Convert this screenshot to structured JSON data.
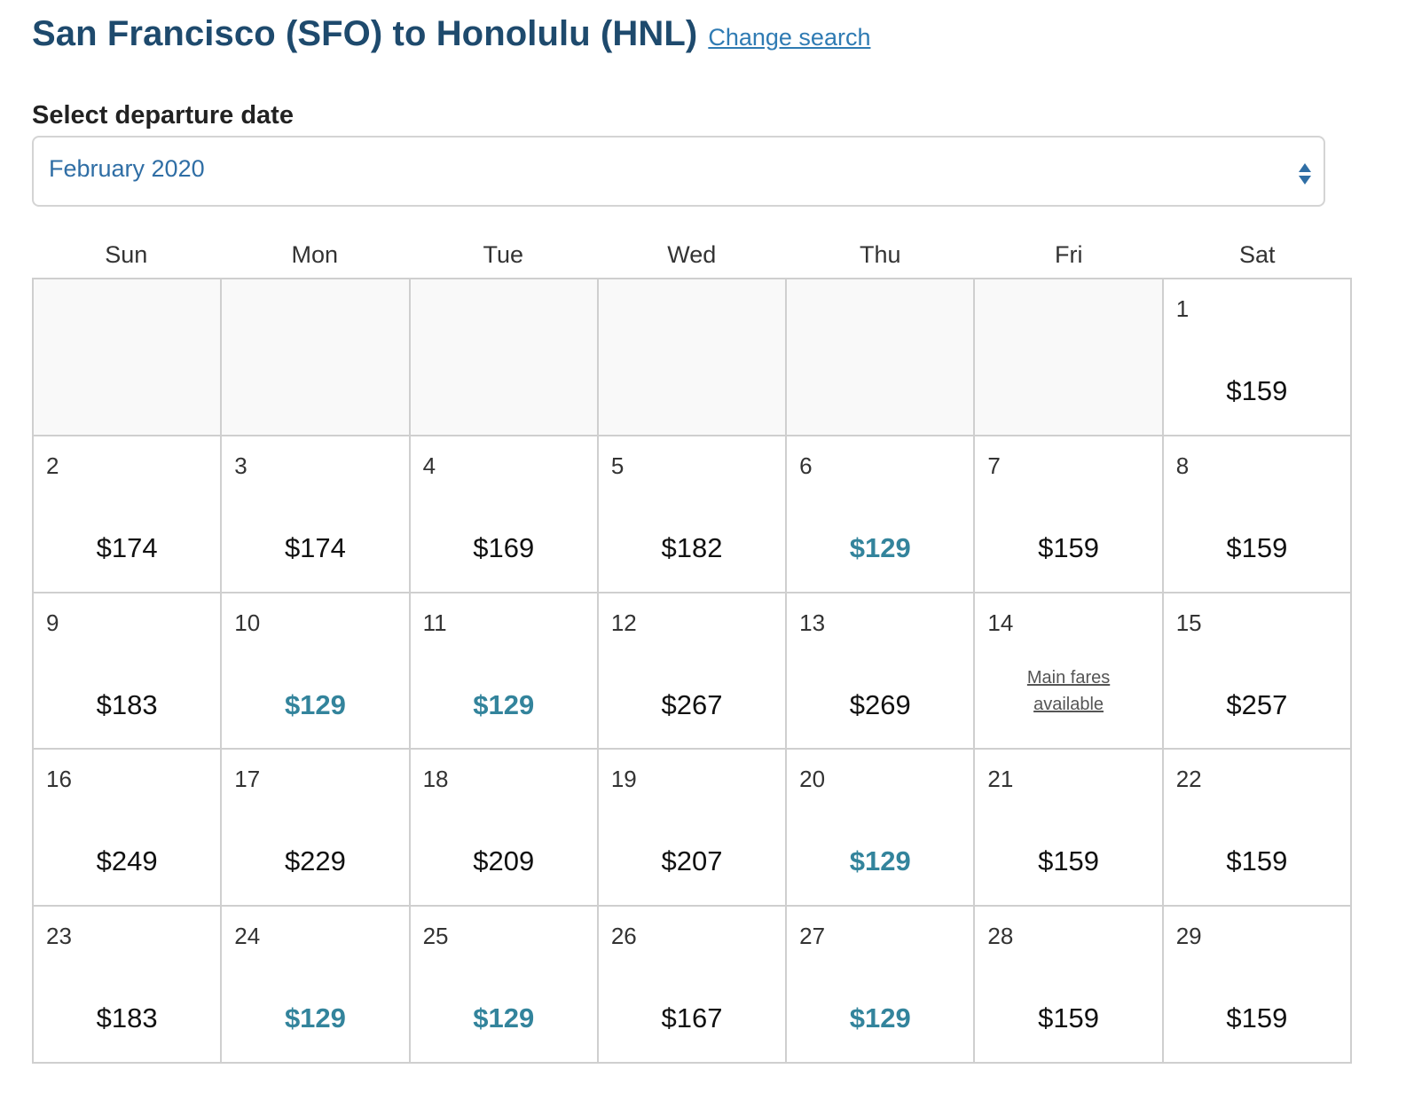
{
  "header": {
    "route_title": "San Francisco (SFO) to Honolulu (HNL)",
    "change_search_label": "Change search"
  },
  "date_picker": {
    "label": "Select departure date",
    "selected_month": "February 2020"
  },
  "calendar": {
    "weekdays": [
      "Sun",
      "Mon",
      "Tue",
      "Wed",
      "Thu",
      "Fri",
      "Sat"
    ],
    "leading_empty_cells": 6,
    "days": [
      {
        "day": "1",
        "price": "$159",
        "lowest": false
      },
      {
        "day": "2",
        "price": "$174",
        "lowest": false
      },
      {
        "day": "3",
        "price": "$174",
        "lowest": false
      },
      {
        "day": "4",
        "price": "$169",
        "lowest": false
      },
      {
        "day": "5",
        "price": "$182",
        "lowest": false
      },
      {
        "day": "6",
        "price": "$129",
        "lowest": true
      },
      {
        "day": "7",
        "price": "$159",
        "lowest": false
      },
      {
        "day": "8",
        "price": "$159",
        "lowest": false
      },
      {
        "day": "9",
        "price": "$183",
        "lowest": false
      },
      {
        "day": "10",
        "price": "$129",
        "lowest": true
      },
      {
        "day": "11",
        "price": "$129",
        "lowest": true
      },
      {
        "day": "12",
        "price": "$267",
        "lowest": false
      },
      {
        "day": "13",
        "price": "$269",
        "lowest": false
      },
      {
        "day": "14",
        "note": "Main fares available"
      },
      {
        "day": "15",
        "price": "$257",
        "lowest": false
      },
      {
        "day": "16",
        "price": "$249",
        "lowest": false
      },
      {
        "day": "17",
        "price": "$229",
        "lowest": false
      },
      {
        "day": "18",
        "price": "$209",
        "lowest": false
      },
      {
        "day": "19",
        "price": "$207",
        "lowest": false
      },
      {
        "day": "20",
        "price": "$129",
        "lowest": true
      },
      {
        "day": "21",
        "price": "$159",
        "lowest": false
      },
      {
        "day": "22",
        "price": "$159",
        "lowest": false
      },
      {
        "day": "23",
        "price": "$183",
        "lowest": false
      },
      {
        "day": "24",
        "price": "$129",
        "lowest": true
      },
      {
        "day": "25",
        "price": "$129",
        "lowest": true
      },
      {
        "day": "26",
        "price": "$167",
        "lowest": false
      },
      {
        "day": "27",
        "price": "$129",
        "lowest": true
      },
      {
        "day": "28",
        "price": "$159",
        "lowest": false
      },
      {
        "day": "29",
        "price": "$159",
        "lowest": false
      }
    ]
  },
  "colors": {
    "title": "#1e4a6d",
    "link": "#2f7bb3",
    "lowest_fare": "#33849c",
    "grid_border": "#cfcfcf",
    "empty_cell": "#f9f9f9"
  }
}
